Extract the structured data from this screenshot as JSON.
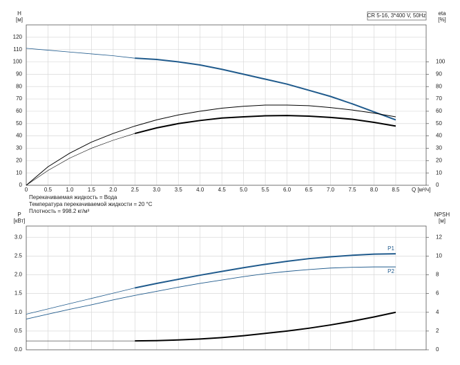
{
  "chart_data": [
    {
      "type": "line",
      "model": "CR 5-16, 3*400 V, 50Hz",
      "ylabel": "H",
      "yunit": "[м]",
      "y2label": "eta",
      "y2unit": "[%]",
      "xlabel": "Q [м³/ч]",
      "annotations": [
        "Перекачиваемая жидкость = Вода",
        "Температура перекачиваемой жидкости = 20 °C",
        "Плотность = 998.2 кг/м³"
      ],
      "x": [
        0,
        0.5,
        1,
        1.5,
        2,
        2.5,
        3,
        3.5,
        4,
        4.5,
        5,
        5.5,
        6,
        6.5,
        7,
        7.5,
        8,
        8.5
      ],
      "xlim": [
        0,
        9.2
      ],
      "xticks": [
        0,
        0.5,
        {
          "value": 1,
          "label": "1.0"
        },
        1.5,
        {
          "value": 2,
          "label": "2.0"
        },
        2.5,
        {
          "value": 3,
          "label": "3.0"
        },
        3.5,
        {
          "value": 4,
          "label": "4.0"
        },
        4.5,
        {
          "value": 5,
          "label": "5.0"
        },
        5.5,
        {
          "value": 6,
          "label": "6.0"
        },
        6.5,
        {
          "value": 7,
          "label": "7.0"
        },
        7.5,
        {
          "value": 8,
          "label": "8.0"
        },
        8.5
      ],
      "ylim": [
        0,
        130
      ],
      "yticks": [
        0,
        10,
        20,
        30,
        40,
        50,
        60,
        70,
        80,
        90,
        100,
        110,
        120
      ],
      "y2lim": [
        0,
        130
      ],
      "y2ticks": [
        0,
        10,
        20,
        30,
        40,
        50,
        60,
        70,
        80,
        90,
        100
      ],
      "grid": true,
      "series": [
        {
          "color": "#1f5a8c",
          "linewidth": 0.8,
          "values": [
            111,
            109.5,
            108,
            106.5,
            105,
            103,
            null,
            null,
            null,
            null,
            null,
            null,
            null,
            null,
            null,
            null,
            null,
            null
          ]
        },
        {
          "color": "#1f5a8c",
          "linewidth": 2,
          "values": [
            null,
            null,
            null,
            null,
            null,
            103,
            102,
            100,
            97.5,
            94,
            90,
            86,
            82,
            77,
            72,
            66,
            59.5,
            53
          ]
        },
        {
          "color": "#000000",
          "linewidth": 1,
          "axis": "y2",
          "values": [
            0,
            15,
            26,
            35,
            42,
            48,
            53,
            57,
            60,
            62.5,
            64,
            65,
            65,
            64.5,
            63,
            61,
            58.5,
            55.5
          ]
        },
        {
          "color": "#000000",
          "linewidth": 0.6,
          "axis": "y2",
          "values": [
            0,
            12,
            22,
            30,
            36.5,
            42,
            null,
            null,
            null,
            null,
            null,
            null,
            null,
            null,
            null,
            null,
            null,
            null
          ]
        },
        {
          "color": "#000000",
          "linewidth": 2,
          "axis": "y2",
          "values": [
            null,
            null,
            null,
            null,
            null,
            42,
            46.5,
            50,
            52.5,
            54.5,
            55.5,
            56.3,
            56.5,
            56,
            55,
            53.5,
            51,
            48
          ]
        }
      ]
    },
    {
      "type": "line",
      "ylabel": "P",
      "yunit": "[кВт]",
      "y2label": "NPSH",
      "y2unit": "[м]",
      "x": [
        0,
        0.5,
        1,
        1.5,
        2,
        2.5,
        3,
        3.5,
        4,
        4.5,
        5,
        5.5,
        6,
        6.5,
        7,
        7.5,
        8,
        8.5
      ],
      "xlim": [
        0,
        9.2
      ],
      "xgrid": [
        0,
        0.5,
        1,
        1.5,
        2,
        2.5,
        3,
        3.5,
        4,
        4.5,
        5,
        5.5,
        6,
        6.5,
        7,
        7.5,
        8,
        8.5
      ],
      "ylim": [
        0,
        3.3
      ],
      "yticks": [
        {
          "value": 0,
          "label": "0.0"
        },
        0.5,
        {
          "value": 1,
          "label": "1.0"
        },
        1.5,
        {
          "value": 2,
          "label": "2.0"
        },
        2.5,
        {
          "value": 3,
          "label": "3.0"
        }
      ],
      "y2lim": [
        0,
        13.2
      ],
      "y2ticks": [
        0,
        2,
        4,
        6,
        8,
        10,
        12
      ],
      "grid": true,
      "series": [
        {
          "color": "#1f5a8c",
          "linewidth": 0.8,
          "values": [
            0.95,
            1.09,
            1.23,
            1.37,
            1.51,
            1.65,
            null,
            null,
            null,
            null,
            null,
            null,
            null,
            null,
            null,
            null,
            null,
            null
          ]
        },
        {
          "name": "P1",
          "color": "#1f5a8c",
          "linewidth": 2,
          "values": [
            null,
            null,
            null,
            null,
            null,
            1.65,
            1.77,
            1.88,
            1.99,
            2.09,
            2.19,
            2.28,
            2.36,
            2.43,
            2.48,
            2.52,
            2.55,
            2.56
          ]
        },
        {
          "name": "P2",
          "color": "#1f5a8c",
          "linewidth": 0.9,
          "values": [
            0.82,
            0.95,
            1.08,
            1.2,
            1.33,
            1.45,
            1.56,
            1.67,
            1.77,
            1.86,
            1.95,
            2.03,
            2.09,
            2.14,
            2.18,
            2.2,
            2.21,
            2.21
          ]
        },
        {
          "color": "#000000",
          "linewidth": 0.6,
          "axis": "y2",
          "values": [
            0.95,
            0.95,
            0.95,
            0.95,
            0.95,
            0.95,
            null,
            null,
            null,
            null,
            null,
            null,
            null,
            null,
            null,
            null,
            null,
            null
          ]
        },
        {
          "color": "#000000",
          "linewidth": 2,
          "axis": "y2",
          "values": [
            null,
            null,
            null,
            null,
            null,
            0.95,
            0.98,
            1.05,
            1.15,
            1.3,
            1.5,
            1.75,
            2,
            2.3,
            2.65,
            3.05,
            3.5,
            4
          ]
        }
      ]
    }
  ]
}
